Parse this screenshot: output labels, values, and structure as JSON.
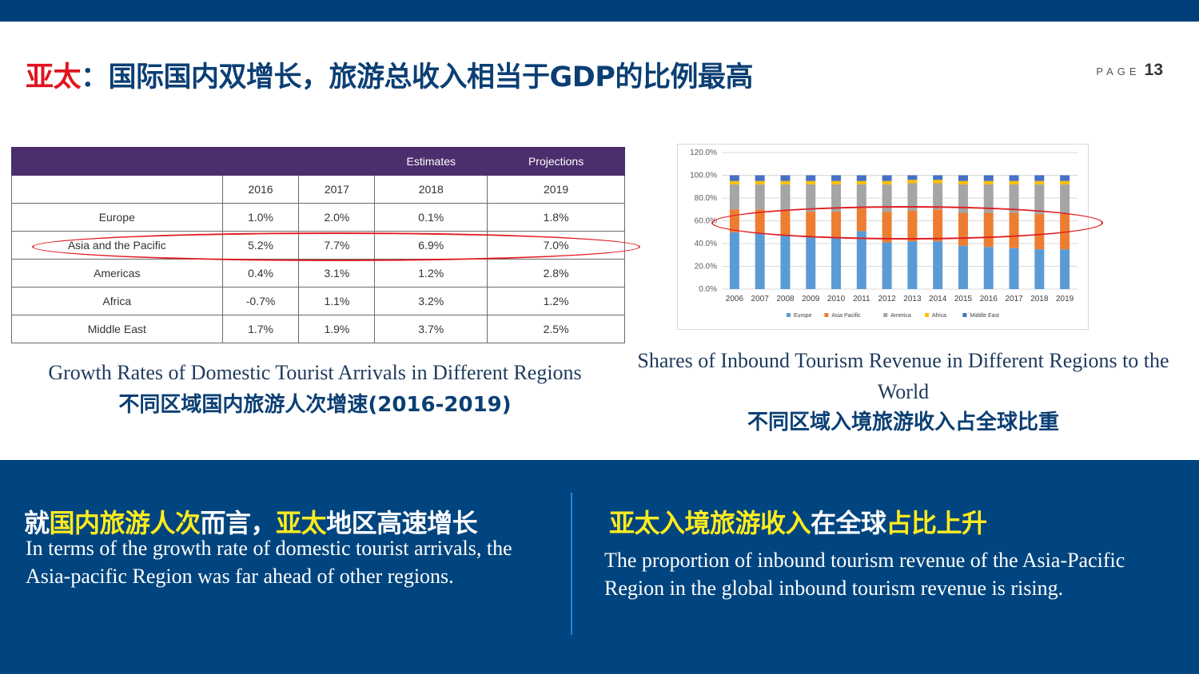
{
  "header": {
    "title_red": "亚太",
    "title_rest": "：国际国内双增长，旅游总收入相当于GDP的比例最高",
    "page_label": "PAGE",
    "page_number": "13"
  },
  "table": {
    "group_headers": [
      "Estimates",
      "Projections"
    ],
    "years": [
      "2016",
      "2017",
      "2018",
      "2019"
    ],
    "rows": [
      {
        "region": "Europe",
        "values": [
          "1.0%",
          "2.0%",
          "0.1%",
          "1.8%"
        ]
      },
      {
        "region": "Asia and the Pacific",
        "values": [
          "5.2%",
          "7.7%",
          "6.9%",
          "7.0%"
        ]
      },
      {
        "region": "Americas",
        "values": [
          "0.4%",
          "3.1%",
          "1.2%",
          "2.8%"
        ]
      },
      {
        "region": "Africa",
        "values": [
          "-0.7%",
          "1.1%",
          "3.2%",
          "1.2%"
        ]
      },
      {
        "region": "Middle East",
        "values": [
          "1.7%",
          "1.9%",
          "3.7%",
          "2.5%"
        ]
      }
    ],
    "caption_en": "Growth Rates of Domestic Tourist Arrivals in Different Regions",
    "caption_zh": "不同区域国内旅游人次增速(2016-2019)"
  },
  "chart_data": {
    "type": "bar",
    "stacked": true,
    "categories": [
      "2006",
      "2007",
      "2008",
      "2009",
      "2010",
      "2011",
      "2012",
      "2013",
      "2014",
      "2015",
      "2016",
      "2017",
      "2018",
      "2019"
    ],
    "series": [
      {
        "name": "Europe",
        "color": "#5b9bd5",
        "values": [
          50,
          49,
          47,
          46,
          45,
          51,
          41,
          42,
          42,
          38,
          37,
          36,
          35,
          35
        ]
      },
      {
        "name": "Asia Pacific",
        "color": "#ed7d31",
        "values": [
          20,
          21,
          22,
          22,
          23,
          20,
          27,
          27,
          28,
          29,
          30,
          31,
          31,
          31
        ]
      },
      {
        "name": "America",
        "color": "#a5a5a5",
        "values": [
          22,
          22,
          23,
          24,
          24,
          21,
          24,
          24,
          23,
          25,
          25,
          25,
          26,
          26
        ]
      },
      {
        "name": "Africa",
        "color": "#ffc000",
        "values": [
          3,
          3,
          3,
          3,
          3,
          3,
          3,
          3,
          3,
          3,
          3,
          3,
          3,
          3
        ]
      },
      {
        "name": "Middle East",
        "color": "#4472c4",
        "values": [
          5,
          5,
          5,
          5,
          5,
          5,
          5,
          4,
          4,
          5,
          5,
          5,
          5,
          5
        ]
      }
    ],
    "y_ticks": [
      "0.0%",
      "20.0%",
      "40.0%",
      "60.0%",
      "80.0%",
      "100.0%",
      "120.0%"
    ],
    "ylim": [
      0,
      120
    ],
    "legend": "bottom",
    "caption_en": "Shares of Inbound Tourism Revenue in Different Regions to the World",
    "caption_zh": "不同区域入境旅游收入占全球比重"
  },
  "bottom_left": {
    "head": [
      {
        "text": "就",
        "hl": false
      },
      {
        "text": "国内旅游人次",
        "hl": true
      },
      {
        "text": "而言，",
        "hl": false
      },
      {
        "text": "亚太",
        "hl": true
      },
      {
        "text": "地区高速增长",
        "hl": false
      }
    ],
    "body": "In terms of the growth rate of domestic tourist arrivals, the Asia-pacific Region was far ahead of other regions."
  },
  "bottom_right": {
    "head": [
      {
        "text": "亚太入境旅游收入",
        "hl": true
      },
      {
        "text": "在全球",
        "hl": false
      },
      {
        "text": "占比上升",
        "hl": true
      }
    ],
    "body": "The proportion of inbound tourism revenue of the Asia-Pacific Region in the global inbound tourism revenue is rising."
  },
  "colors": {
    "navy": "#00457f",
    "title_blue": "#0b3f74",
    "highlight_red": "#e0141e",
    "highlight_yellow": "#ffec1f",
    "table_header": "#4b2e6c"
  }
}
